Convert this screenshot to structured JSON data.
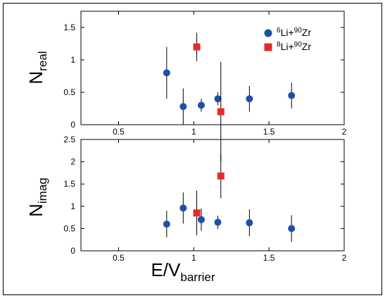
{
  "chart_data": [
    {
      "type": "scatter",
      "panel": "top",
      "ylabel": "N",
      "ylabel_sub": "real",
      "xlim": [
        0.25,
        2
      ],
      "ylim": [
        0,
        1.75
      ],
      "xticks": [
        0.5,
        1,
        1.5,
        2
      ],
      "yticks": [
        0,
        0.5,
        1,
        1.5
      ],
      "xtick_labels": [
        "0.5",
        "1",
        "1.5",
        "2"
      ],
      "ytick_labels": [
        "0",
        "0.5",
        "1",
        "1.5"
      ],
      "legend_position": "top-right",
      "series": [
        {
          "name": "6Li+90Zr",
          "marker": "circle",
          "color": "#1f4fa8",
          "points": [
            {
              "x": 0.82,
              "y": 0.8,
              "err": 0.4
            },
            {
              "x": 0.93,
              "y": 0.28,
              "err": 0.28
            },
            {
              "x": 1.05,
              "y": 0.3,
              "err": 0.1
            },
            {
              "x": 1.16,
              "y": 0.4,
              "err": 0.1
            },
            {
              "x": 1.37,
              "y": 0.4,
              "err": 0.2
            },
            {
              "x": 1.65,
              "y": 0.45,
              "err": 0.2
            }
          ]
        },
        {
          "name": "8Li+90Zr",
          "marker": "square",
          "color": "#e8292b",
          "points": [
            {
              "x": 1.02,
              "y": 1.2,
              "err": 0.22
            },
            {
              "x": 1.18,
              "y": 0.2,
              "err": 0.77
            }
          ]
        }
      ]
    },
    {
      "type": "scatter",
      "panel": "bottom",
      "ylabel": "N",
      "ylabel_sub": "imag",
      "xlabel": "E/V",
      "xlabel_sub": "barrier",
      "xlim": [
        0.25,
        2
      ],
      "ylim": [
        0,
        2.5
      ],
      "xticks": [
        0.5,
        1,
        1.5,
        2
      ],
      "yticks": [
        0,
        0.5,
        1,
        1.5,
        2,
        2.5
      ],
      "xtick_labels": [
        "0.5",
        "1",
        "1.5",
        "2"
      ],
      "ytick_labels": [
        "0",
        "0.5",
        "1",
        "1.5",
        "2",
        "2.5"
      ],
      "series": [
        {
          "name": "6Li+90Zr",
          "marker": "circle",
          "color": "#1f4fa8",
          "points": [
            {
              "x": 0.82,
              "y": 0.6,
              "err": 0.3
            },
            {
              "x": 0.93,
              "y": 0.96,
              "err": 0.35
            },
            {
              "x": 1.05,
              "y": 0.7,
              "err": 0.25
            },
            {
              "x": 1.16,
              "y": 0.64,
              "err": 0.15
            },
            {
              "x": 1.37,
              "y": 0.63,
              "err": 0.3
            },
            {
              "x": 1.65,
              "y": 0.5,
              "err": 0.3
            }
          ]
        },
        {
          "name": "8Li+90Zr",
          "marker": "square",
          "color": "#e8292b",
          "points": [
            {
              "x": 1.02,
              "y": 0.85,
              "err": 0.5
            },
            {
              "x": 1.18,
              "y": 1.68,
              "err": 0.5
            }
          ]
        }
      ]
    }
  ],
  "legend": [
    {
      "sup1": "6",
      "base1": "Li+",
      "sup2": "90",
      "base2": "Zr"
    },
    {
      "sup1": "8",
      "base1": "Li+",
      "sup2": "90",
      "base2": "Zr"
    }
  ]
}
